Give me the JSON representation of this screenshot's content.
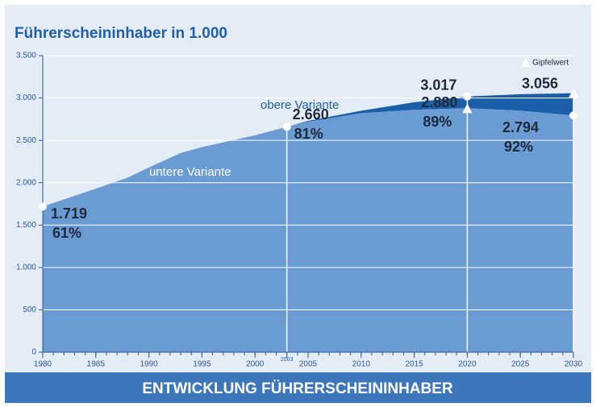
{
  "chart_data": {
    "type": "area",
    "title": "Führerscheininhaber in 1.000",
    "footer": "ENTWICKLUNG FÜHRERSCHEININHABER",
    "peak_label": "Gipfelwert",
    "x": [
      1980,
      1985,
      1988,
      1990,
      1993,
      1995,
      2000,
      2003,
      2005,
      2010,
      2015,
      2020,
      2025,
      2030
    ],
    "series": [
      {
        "name": "untere Variante",
        "color": "#6a9bd3",
        "values": [
          1719,
          1930,
          2060,
          2180,
          2350,
          2420,
          2560,
          2660,
          2720,
          2820,
          2860,
          2880,
          2850,
          2794
        ],
        "value_labels": [
          "1.719",
          null,
          null,
          null,
          null,
          null,
          null,
          "2.660",
          null,
          null,
          null,
          "2.880",
          null,
          "2.794"
        ],
        "share_labels": [
          "61%",
          null,
          null,
          null,
          null,
          null,
          null,
          "81%",
          null,
          null,
          null,
          "89%",
          null,
          "92%"
        ]
      },
      {
        "name": "obere Variante",
        "color": "#1b5ea9",
        "values": [
          null,
          null,
          null,
          null,
          null,
          null,
          null,
          2660,
          2730,
          2850,
          2950,
          3017,
          3045,
          3056
        ],
        "value_labels": [
          null,
          null,
          null,
          null,
          null,
          null,
          null,
          null,
          null,
          null,
          null,
          "3.017",
          null,
          "3.056"
        ]
      }
    ],
    "xlim": [
      1980,
      2030
    ],
    "xticks": [
      1980,
      1985,
      1990,
      1995,
      2000,
      2003,
      2005,
      2010,
      2015,
      2020,
      2025,
      2030
    ],
    "ylim": [
      0,
      3500
    ],
    "yticks": [
      0,
      500,
      {
        "value": 1000,
        "label": "1.000"
      },
      {
        "value": 1500,
        "label": "1.500"
      },
      {
        "value": 2000,
        "label": "2.000"
      },
      {
        "value": 2500,
        "label": "2.500"
      },
      {
        "value": 3000,
        "label": "3.000"
      },
      {
        "value": 3500,
        "label": "3.500"
      }
    ],
    "grid": true
  }
}
